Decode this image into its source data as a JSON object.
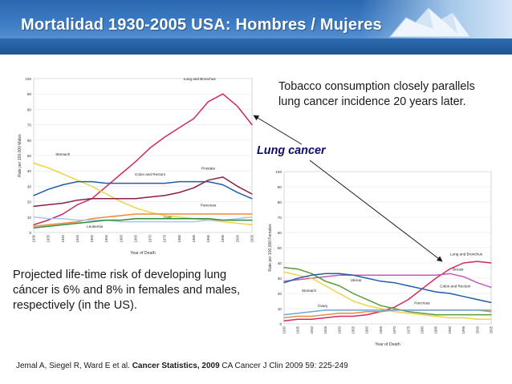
{
  "slide": {
    "title": "Mortalidad 1930-2005 USA: Hombres / Mujeres",
    "tobacco_note": "Tobacco consumption closely parallels lung cancer incidence 20 years later.",
    "lung_cancer_label": "Lung cancer",
    "risk_note": "Projected life-time risk of developing lung cáncer is 6% and 8% in females and males, respectively (in the US).",
    "citation": {
      "authors": "Jemal A, Siegel R, Ward E et al. ",
      "title": "Cancer Statistics, 2009",
      "journal": " CA Cancer J Clin 2009 59: 225-249"
    }
  },
  "colors": {
    "title_bar": "#3e7ec6",
    "lung": "#d12a5e",
    "stomach": "#f0d24a",
    "colon": "#1f5ea8",
    "prostate": "#8a1f4a",
    "pancreas": "#f08a3a",
    "liver": "#a9c6e8",
    "leukemia": "#2e8b3a",
    "breast": "#c658b8",
    "uterus": "#5a9a3a",
    "ovary": "#6aa8d8",
    "arrow": "#1a1a1a"
  },
  "chart_data": [
    {
      "type": "line",
      "ylabel": "Rate per 100,000 Males",
      "xlabel": "Year of Death",
      "ylim": [
        0,
        100
      ],
      "y_ticks": [
        "0",
        "10",
        "20",
        "30",
        "40",
        "50",
        "60",
        "70",
        "80",
        "90",
        "100"
      ],
      "x_ticks": [
        "1930",
        "1935",
        "1940",
        "1945",
        "1950",
        "1955",
        "1960",
        "1965",
        "1970",
        "1975",
        "1980",
        "1985",
        "1990",
        "1995",
        "2000",
        "2005"
      ],
      "x": [
        1930,
        1935,
        1940,
        1945,
        1950,
        1955,
        1960,
        1965,
        1970,
        1975,
        1980,
        1985,
        1990,
        1995,
        2000,
        2005
      ],
      "series": [
        {
          "name": "Lung and Bronchus",
          "color_key": "lung",
          "values": [
            5,
            8,
            12,
            18,
            22,
            30,
            38,
            46,
            55,
            62,
            68,
            74,
            85,
            90,
            82,
            70
          ]
        },
        {
          "name": "Stomach",
          "color_key": "stomach",
          "values": [
            45,
            42,
            38,
            34,
            30,
            25,
            20,
            16,
            13,
            11,
            10,
            9,
            8,
            7,
            6,
            5
          ]
        },
        {
          "name": "Colon and Rectum",
          "color_key": "colon",
          "values": [
            24,
            28,
            31,
            33,
            33,
            32,
            32,
            32,
            32,
            32,
            33,
            33,
            33,
            31,
            26,
            22
          ]
        },
        {
          "name": "Prostate",
          "color_key": "prostate",
          "values": [
            17,
            18,
            19,
            21,
            22,
            22,
            22,
            22,
            23,
            24,
            26,
            29,
            34,
            36,
            30,
            25
          ]
        },
        {
          "name": "Pancreas",
          "color_key": "pancreas",
          "values": [
            4,
            5,
            6,
            7,
            9,
            10,
            11,
            12,
            12,
            12,
            12,
            12,
            12,
            12,
            12,
            12
          ]
        },
        {
          "name": "Liver",
          "color_key": "liver",
          "values": [
            10,
            9,
            9,
            8,
            8,
            8,
            7,
            7,
            7,
            7,
            7,
            7,
            8,
            8,
            9,
            10
          ]
        },
        {
          "name": "Leukemia",
          "color_key": "leukemia",
          "values": [
            3,
            4,
            5,
            6,
            7,
            8,
            8,
            9,
            9,
            9,
            9,
            9,
            9,
            8,
            8,
            8
          ]
        }
      ]
    },
    {
      "type": "line",
      "ylabel": "Rate per 100,000 Females",
      "xlabel": "Year of Death",
      "ylim": [
        0,
        100
      ],
      "y_ticks": [
        "0",
        "10",
        "20",
        "30",
        "40",
        "50",
        "60",
        "70",
        "80",
        "90",
        "100"
      ],
      "x_ticks": [
        "1930",
        "1935",
        "1940",
        "1945",
        "1950",
        "1955",
        "1960",
        "1965",
        "1970",
        "1975",
        "1980",
        "1985",
        "1990",
        "1995",
        "2000",
        "2005"
      ],
      "x": [
        1930,
        1935,
        1940,
        1945,
        1950,
        1955,
        1960,
        1965,
        1970,
        1975,
        1980,
        1985,
        1990,
        1995,
        2000,
        2005
      ],
      "series": [
        {
          "name": "Lung and Bronchus",
          "color_key": "lung",
          "values": [
            2,
            3,
            3,
            4,
            5,
            5,
            6,
            8,
            11,
            16,
            23,
            30,
            36,
            40,
            41,
            40
          ]
        },
        {
          "name": "Breast",
          "color_key": "breast",
          "values": [
            28,
            29,
            30,
            31,
            32,
            32,
            32,
            32,
            32,
            32,
            32,
            32,
            33,
            31,
            27,
            24
          ]
        },
        {
          "name": "Uterus",
          "color_key": "uterus",
          "values": [
            37,
            36,
            33,
            28,
            25,
            20,
            16,
            12,
            10,
            8,
            7,
            6,
            6,
            6,
            6,
            6
          ]
        },
        {
          "name": "Stomach",
          "color_key": "stomach",
          "values": [
            34,
            32,
            30,
            25,
            20,
            15,
            12,
            10,
            8,
            7,
            6,
            5,
            4,
            4,
            3,
            3
          ]
        },
        {
          "name": "Colon and Rectum",
          "color_key": "colon",
          "values": [
            27,
            30,
            32,
            33,
            33,
            32,
            30,
            28,
            27,
            25,
            23,
            21,
            20,
            18,
            16,
            14
          ]
        },
        {
          "name": "Pancreas",
          "color_key": "pancreas",
          "values": [
            4,
            5,
            5,
            6,
            7,
            7,
            8,
            8,
            9,
            9,
            9,
            9,
            9,
            9,
            9,
            9
          ]
        },
        {
          "name": "Ovary",
          "color_key": "ovary",
          "values": [
            6,
            7,
            8,
            9,
            9,
            9,
            9,
            9,
            9,
            9,
            9,
            9,
            9,
            9,
            9,
            8
          ]
        }
      ]
    }
  ]
}
